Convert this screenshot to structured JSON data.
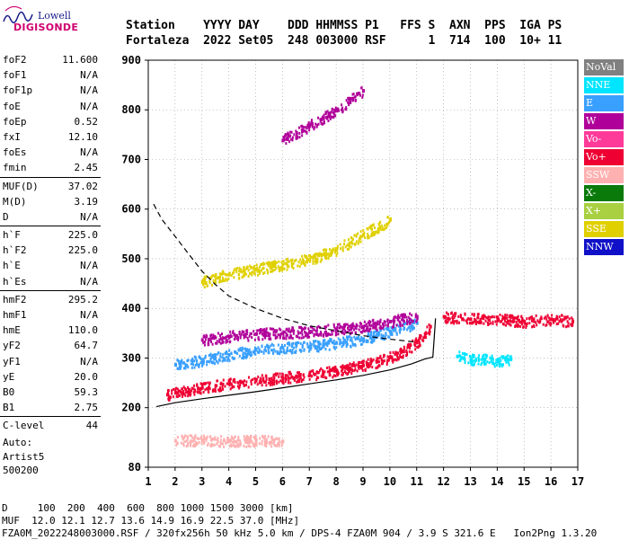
{
  "logo": {
    "line1": "Lowell",
    "line2": "DIGISONDE"
  },
  "header": {
    "row1": "Station    YYYY DAY    DDD HHMMSS P1   FFS S  AXN  PPS  IGA PS",
    "row2": "Fortaleza  2022 Set05  248 003000 RSF      1  714  100  10+ 11"
  },
  "params": [
    {
      "group": [
        {
          "name": "foF2",
          "value": "11.600"
        },
        {
          "name": "foF1",
          "value": "N/A"
        },
        {
          "name": "foF1p",
          "value": "N/A"
        },
        {
          "name": "foE",
          "value": "N/A"
        },
        {
          "name": "foEp",
          "value": "0.52"
        },
        {
          "name": "fxI",
          "value": "12.10"
        },
        {
          "name": "foEs",
          "value": "N/A"
        },
        {
          "name": "fmin",
          "value": "2.45"
        }
      ]
    },
    {
      "group": [
        {
          "name": "MUF(D)",
          "value": "37.02"
        },
        {
          "name": "M(D)",
          "value": "3.19"
        },
        {
          "name": "D",
          "value": "N/A"
        }
      ]
    },
    {
      "group": [
        {
          "name": "h`F",
          "value": "225.0"
        },
        {
          "name": "h`F2",
          "value": "225.0"
        },
        {
          "name": "h`E",
          "value": "N/A"
        },
        {
          "name": "h`Es",
          "value": "N/A"
        }
      ]
    },
    {
      "group": [
        {
          "name": "hmF2",
          "value": "295.2"
        },
        {
          "name": "hmF1",
          "value": "N/A"
        },
        {
          "name": "hmE",
          "value": "110.0"
        },
        {
          "name": "yF2",
          "value": "64.7"
        },
        {
          "name": "yF1",
          "value": "N/A"
        },
        {
          "name": "yE",
          "value": "20.0"
        },
        {
          "name": "B0",
          "value": "59.3"
        },
        {
          "name": "B1",
          "value": "2.75"
        }
      ]
    },
    {
      "group": [
        {
          "name": "C-level",
          "value": "44"
        }
      ]
    }
  ],
  "auto": {
    "line1": "Auto:",
    "line2": "Artist5",
    "line3": "500200"
  },
  "legend": [
    {
      "label": "NoVal",
      "color": "#808080"
    },
    {
      "label": "NNE",
      "color": "#00e5ff"
    },
    {
      "label": "E",
      "color": "#3aa0ff"
    },
    {
      "label": "W",
      "color": "#b0009a"
    },
    {
      "label": "Vo-",
      "color": "#ff3b9a"
    },
    {
      "label": "Vo+",
      "color": "#ee0033"
    },
    {
      "label": "SSW",
      "color": "#ffb0b0"
    },
    {
      "label": "X-",
      "color": "#0a7a0a"
    },
    {
      "label": "X+",
      "color": "#a8d040"
    },
    {
      "label": "SSE",
      "color": "#e0d000"
    },
    {
      "label": "NNW",
      "color": "#1010c8"
    }
  ],
  "footer": {
    "line1": "D     100  200  400  600  800 1000 1500 3000 [km]",
    "line2": "MUF  12.0 12.1 12.7 13.6 14.9 16.9 22.5 37.0 [MHz]",
    "line3": "FZA0M_2022248003000.RSF / 320fx256h 50 kHz 5.0 km / DPS-4 FZA0M 904 / 3.9 S 321.6 E   Ion2Png 1.3.20"
  },
  "chart_data": {
    "type": "scatter",
    "title": "",
    "xlabel": "",
    "ylabel": "",
    "x_ticks": [
      1,
      2,
      3,
      4,
      5,
      6,
      7,
      8,
      9,
      10,
      11,
      12,
      13,
      14,
      15,
      16,
      17
    ],
    "y_ticks": [
      80,
      200,
      300,
      400,
      500,
      600,
      700,
      800,
      900
    ],
    "xlim": [
      1,
      17
    ],
    "ylim": [
      80,
      900
    ],
    "grid": true,
    "series": [
      {
        "legend": "Vo+",
        "color": "#ee0033",
        "x": [
          1.7,
          2.0,
          2.5,
          3.0,
          3.5,
          4.0,
          4.5,
          5.0,
          5.5,
          6.0,
          6.5,
          7.0,
          7.5,
          8.0,
          8.5,
          9.0,
          9.5,
          10.0,
          10.5,
          11.0,
          11.3,
          11.5
        ],
        "y": [
          228,
          232,
          238,
          242,
          246,
          250,
          253,
          256,
          259,
          262,
          265,
          268,
          272,
          276,
          281,
          287,
          294,
          303,
          315,
          333,
          350,
          365
        ]
      },
      {
        "legend": "E",
        "color": "#3aa0ff",
        "x": [
          2.0,
          3.0,
          4.0,
          5.0,
          6.0,
          7.0,
          8.0,
          9.0,
          10.0,
          11.0
        ],
        "y": [
          288,
          297,
          308,
          318,
          322,
          325,
          332,
          340,
          355,
          372
        ]
      },
      {
        "legend": "W",
        "color": "#b0009a",
        "x": [
          3.0,
          4.0,
          5.0,
          6.0,
          7.0,
          8.0,
          9.0,
          10.0,
          11.0
        ],
        "y": [
          338,
          345,
          350,
          352,
          355,
          360,
          365,
          375,
          385
        ]
      },
      {
        "legend": "SSE",
        "color": "#e0d000",
        "x": [
          3.0,
          4.0,
          5.0,
          6.0,
          7.0,
          8.0,
          9.0,
          10.0
        ],
        "y": [
          455,
          470,
          480,
          490,
          500,
          520,
          550,
          580
        ]
      },
      {
        "legend": "W",
        "color": "#b0009a",
        "x": [
          6.0,
          7.0,
          8.0,
          9.0
        ],
        "y": [
          740,
          770,
          800,
          840
        ]
      },
      {
        "legend": "Vo+",
        "color": "#ee0033",
        "x": [
          12.0,
          13.0,
          14.0,
          15.0,
          16.0,
          16.8
        ],
        "y": [
          385,
          380,
          380,
          375,
          380,
          375
        ]
      },
      {
        "legend": "NNE",
        "color": "#00e5ff",
        "x": [
          12.5,
          13.0,
          13.5,
          14.0,
          14.5
        ],
        "y": [
          305,
          298,
          300,
          295,
          300
        ]
      },
      {
        "legend": "SSW",
        "color": "#ffb0b0",
        "x": [
          2.0,
          3.0,
          4.0,
          5.0,
          6.0
        ],
        "y": [
          135,
          136,
          134,
          135,
          134
        ]
      }
    ],
    "model_curves": [
      {
        "style": "solid",
        "x": [
          1.3,
          2.0,
          3.0,
          4.0,
          5.0,
          6.0,
          7.0,
          8.0,
          9.0,
          10.0,
          10.8,
          11.3,
          11.6,
          11.65,
          11.7
        ],
        "y": [
          202,
          210,
          218,
          225,
          232,
          240,
          248,
          256,
          265,
          276,
          288,
          298,
          302,
          340,
          380
        ]
      },
      {
        "style": "dashed",
        "x": [
          1.2,
          1.5,
          2.0,
          2.5,
          3.0,
          3.5,
          4.0,
          5.0,
          6.0,
          7.0,
          8.0,
          9.0,
          10.0,
          11.0
        ],
        "y": [
          610,
          580,
          545,
          510,
          475,
          448,
          425,
          400,
          380,
          365,
          355,
          345,
          338,
          332
        ]
      }
    ]
  }
}
